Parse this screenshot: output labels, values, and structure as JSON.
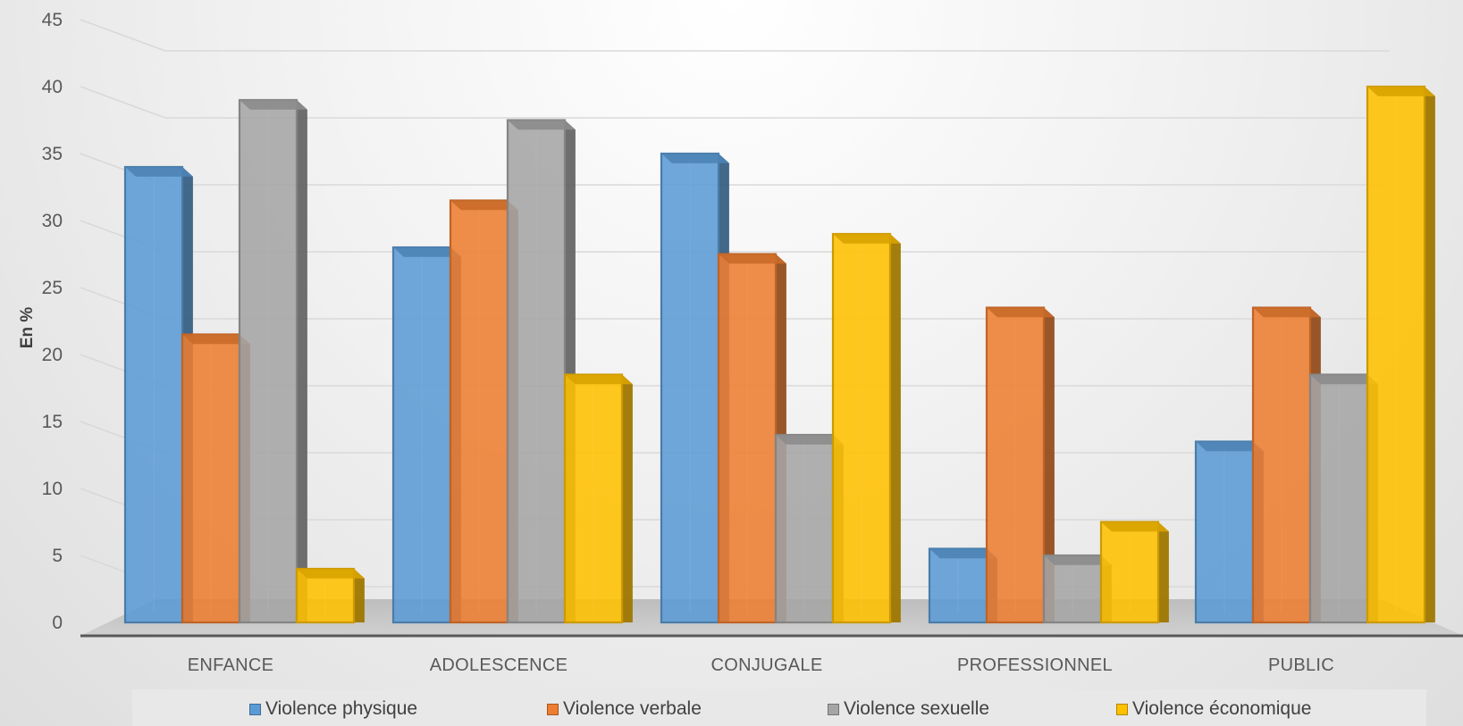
{
  "chart_data": {
    "type": "bar",
    "style": "3d-clustered-column",
    "ylabel": "En %",
    "ylim": [
      0,
      45
    ],
    "yticks": [
      0,
      5,
      10,
      15,
      20,
      25,
      30,
      35,
      40,
      45
    ],
    "grid": true,
    "legend_position": "bottom",
    "categories": [
      "ENFANCE",
      "ADOLESCENCE",
      "CONJUGALE",
      "PROFESSIONNEL",
      "PUBLIC"
    ],
    "series": [
      {
        "name": "Violence physique",
        "color": "#5b9bd5",
        "values": [
          34,
          28,
          35,
          5.5,
          13.5
        ]
      },
      {
        "name": "Violence verbale",
        "color": "#ed7d31",
        "values": [
          21.5,
          31.5,
          27.5,
          23.5,
          23.5
        ]
      },
      {
        "name": "Violence sexuelle",
        "color": "#a5a5a5",
        "values": [
          39,
          37.5,
          14,
          5,
          18.5
        ]
      },
      {
        "name": "Violence économique",
        "color": "#ffc000",
        "values": [
          4,
          18.5,
          29,
          7.5,
          40
        ]
      }
    ]
  }
}
